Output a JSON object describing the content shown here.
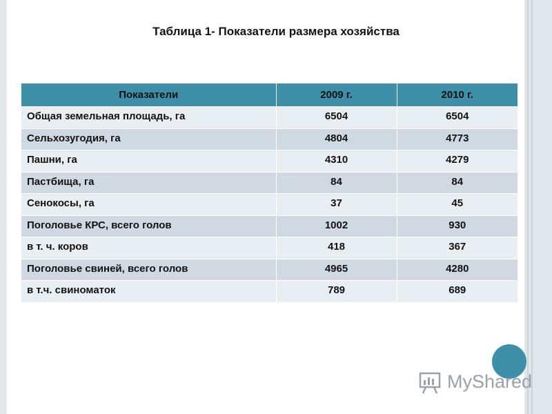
{
  "title": "Таблица 1- Показатели размера хозяйства",
  "table": {
    "headers": [
      "Показатели",
      "2009 г.",
      "2010 г."
    ],
    "rows": [
      {
        "label": "Общая земельная площадь, га",
        "y2009": "6504",
        "y2010": "6504"
      },
      {
        "label": "Сельхозугодия, га",
        "y2009": "4804",
        "y2010": "4773"
      },
      {
        "label": "Пашни, га",
        "y2009": "4310",
        "y2010": "4279"
      },
      {
        "label": "Пастбища, га",
        "y2009": "84",
        "y2010": "84"
      },
      {
        "label": "Сенокосы, га",
        "y2009": "37",
        "y2010": "45"
      },
      {
        "label": "Поголовье КРС, всего голов",
        "y2009": "1002",
        "y2010": "930"
      },
      {
        "label": "в т. ч. коров",
        "y2009": "418",
        "y2010": "367"
      },
      {
        "label": "Поголовье свиней, всего голов",
        "y2009": "4965",
        "y2010": "4280"
      },
      {
        "label": "в т.ч. свиноматок",
        "y2009": "789",
        "y2010": "689"
      }
    ]
  },
  "watermark": {
    "text": "MyShared",
    "icon": "presentation-board-icon"
  },
  "colors": {
    "accent": "#3d8fa8",
    "row_light": "#e9eef3",
    "row_dark": "#d0d9e2"
  }
}
